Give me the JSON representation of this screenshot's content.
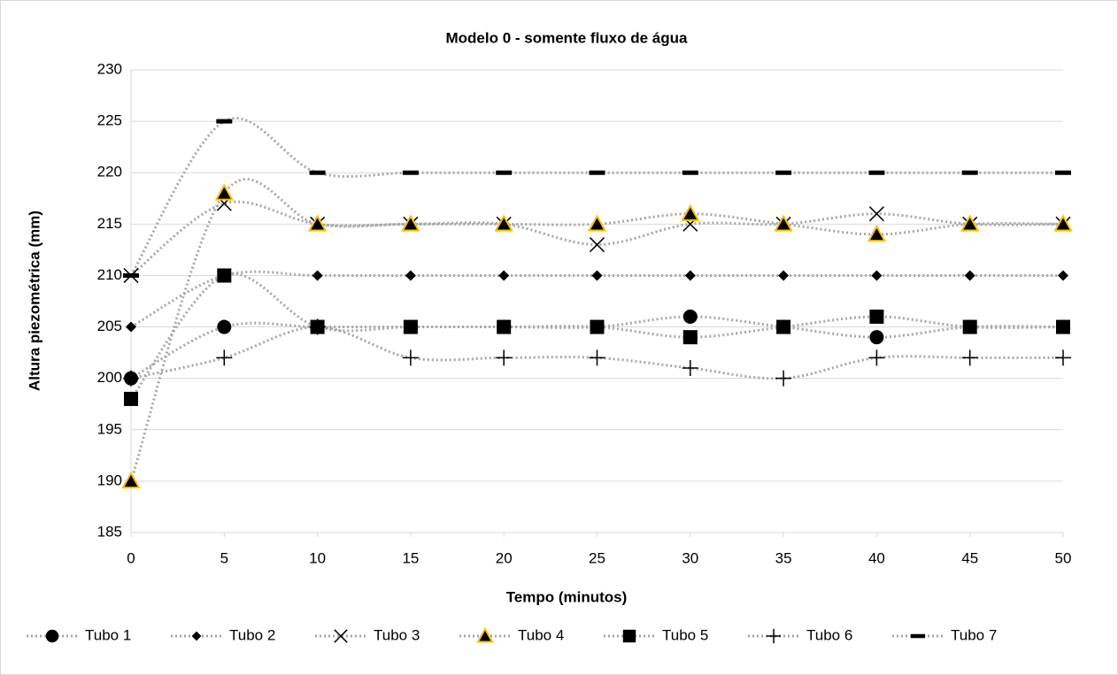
{
  "chart_data": {
    "type": "line",
    "title": "Modelo 0 - somente fluxo de água",
    "x_label": "Tempo (minutos)",
    "y_label": "Altura piezométrica (mm)",
    "x": [
      0,
      5,
      10,
      15,
      20,
      25,
      30,
      35,
      40,
      45,
      50
    ],
    "xlim": [
      0,
      50
    ],
    "xticks": [
      0,
      5,
      10,
      15,
      20,
      25,
      30,
      35,
      40,
      45,
      50
    ],
    "ylim": [
      185,
      230
    ],
    "yticks": [
      185,
      190,
      195,
      200,
      205,
      210,
      215,
      220,
      225,
      230
    ],
    "grid": true,
    "smooth": true,
    "line_color": "#a6a6a6",
    "legend": "bottom",
    "series": [
      {
        "name": "Tubo 1",
        "marker": "circle",
        "color": "#000000",
        "values": [
          200,
          205,
          205,
          205,
          205,
          205,
          206,
          205,
          204,
          205,
          205
        ]
      },
      {
        "name": "Tubo 2",
        "marker": "diamond",
        "color": "#000000",
        "values": [
          205,
          210,
          210,
          210,
          210,
          210,
          210,
          210,
          210,
          210,
          210
        ]
      },
      {
        "name": "Tubo 3",
        "marker": "x",
        "color": "#000000",
        "values": [
          210,
          217,
          215,
          215,
          215,
          213,
          215,
          215,
          216,
          215,
          215
        ]
      },
      {
        "name": "Tubo 4",
        "marker": "triangle",
        "color": "#000000",
        "edge": "#ffc000",
        "values": [
          190,
          218,
          215,
          215,
          215,
          215,
          216,
          215,
          214,
          215,
          215
        ]
      },
      {
        "name": "Tubo 5",
        "marker": "square",
        "color": "#000000",
        "values": [
          198,
          210,
          205,
          205,
          205,
          205,
          204,
          205,
          206,
          205,
          205
        ]
      },
      {
        "name": "Tubo 6",
        "marker": "plus",
        "color": "#000000",
        "values": [
          200,
          202,
          205,
          202,
          202,
          202,
          201,
          200,
          202,
          202,
          202
        ]
      },
      {
        "name": "Tubo 7",
        "marker": "dash",
        "color": "#000000",
        "values": [
          210,
          225,
          220,
          220,
          220,
          220,
          220,
          220,
          220,
          220,
          220
        ]
      }
    ]
  }
}
